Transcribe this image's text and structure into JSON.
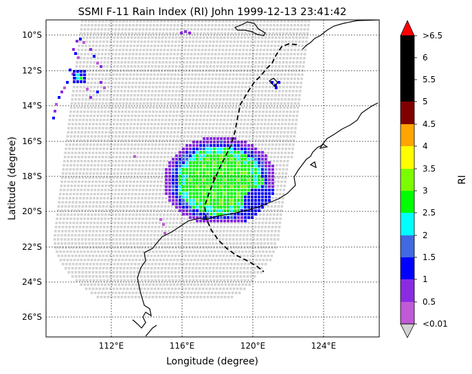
{
  "title": "SSMI F-11 Rain Index (RI) John 1999-12-13 23:41:42",
  "xlabel": "Longitude (degree)",
  "ylabel": "Latitude (degree)",
  "lat_ticks": [
    "10°S",
    "12°S",
    "14°S",
    "16°S",
    "18°S",
    "20°S",
    "22°S",
    "24°S",
    "26°S"
  ],
  "lon_ticks": [
    "112°E",
    "116°E",
    "120°E",
    "124°E"
  ],
  "colorbar": {
    "label": "RI",
    "tick_labels": [
      ">6.5",
      "6",
      "5.5",
      "5",
      "4.5",
      "4",
      "3.5",
      "3",
      "2.5",
      "2",
      "1.5",
      "1",
      "0.5",
      "<0.01"
    ],
    "under_color": "#d3d3d3",
    "over_color": "#ff0000",
    "bands": [
      {
        "from": 0.01,
        "to": 0.5,
        "color": "#c05ad6"
      },
      {
        "from": 0.5,
        "to": 1,
        "color": "#8a2be2"
      },
      {
        "from": 1,
        "to": 1.5,
        "color": "#0000ff"
      },
      {
        "from": 1.5,
        "to": 2,
        "color": "#4169e1"
      },
      {
        "from": 2,
        "to": 2.5,
        "color": "#00ffff"
      },
      {
        "from": 2.5,
        "to": 3,
        "color": "#00ff00"
      },
      {
        "from": 3,
        "to": 3.5,
        "color": "#7cfc00"
      },
      {
        "from": 3.5,
        "to": 4,
        "color": "#ffff00"
      },
      {
        "from": 4,
        "to": 4.5,
        "color": "#ffa500"
      },
      {
        "from": 4.5,
        "to": 5,
        "color": "#800000"
      },
      {
        "from": 5,
        "to": 6.5,
        "color": "#000000"
      }
    ]
  }
}
